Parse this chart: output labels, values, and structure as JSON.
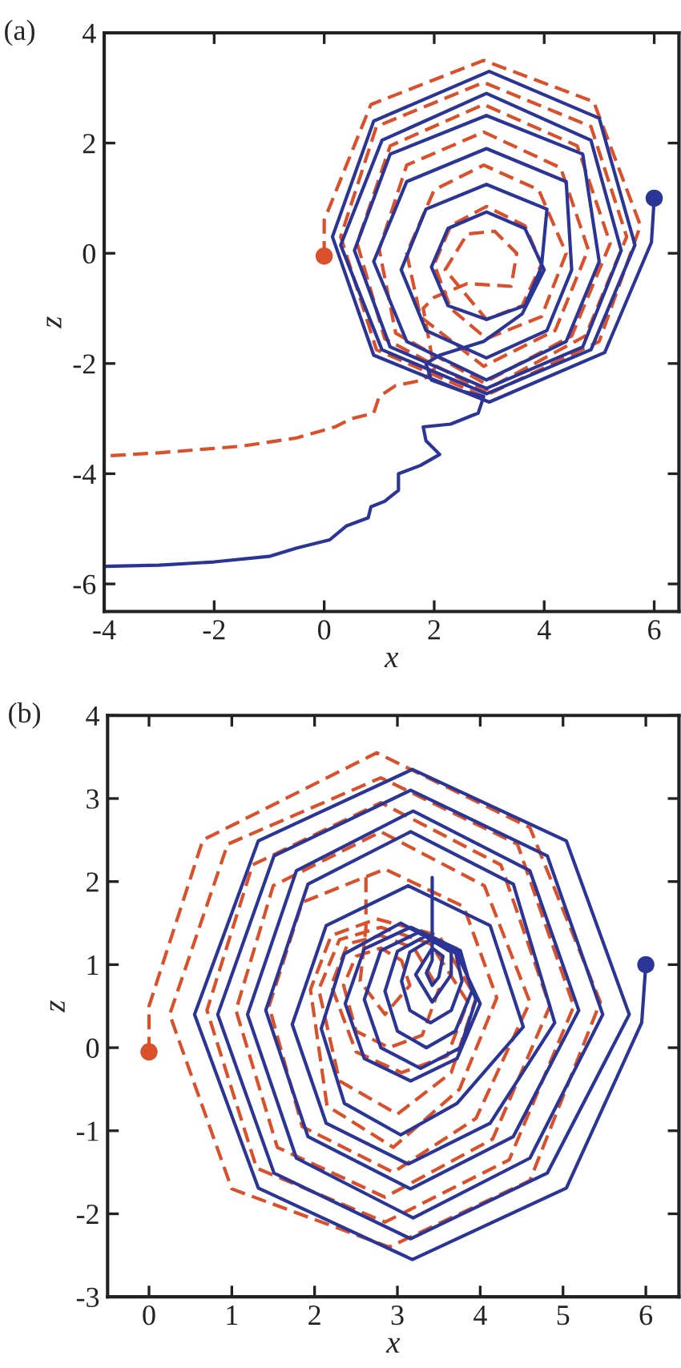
{
  "chart_data": [
    {
      "type": "line",
      "title": "(a)",
      "xlabel": "x",
      "ylabel": "z",
      "xlim": [
        -4,
        6.45
      ],
      "ylim": [
        -6.5,
        4
      ],
      "xticks": [
        -4,
        -2,
        0,
        2,
        4,
        6
      ],
      "yticks": [
        -6,
        -4,
        -2,
        0,
        2,
        4
      ],
      "grid": false,
      "series": [
        {
          "color": "#d9502b",
          "line_style": "dashed",
          "marker": "none",
          "x": [
            0.0,
            0.0,
            0.85,
            2.9,
            4.9,
            5.75,
            5.0,
            2.9,
            0.95,
            0.3,
            0.95,
            2.9,
            4.85,
            5.5,
            4.75,
            2.9,
            1.1,
            0.6,
            1.2,
            2.9,
            4.6,
            5.2,
            4.5,
            2.9,
            1.3,
            1.0,
            1.5,
            2.9,
            4.3,
            4.8,
            4.2,
            2.9,
            1.75,
            1.5,
            2.0,
            2.9,
            3.9,
            4.4,
            3.95,
            2.95,
            2.3,
            2.0,
            2.3,
            2.95,
            3.65,
            3.95,
            3.6,
            2.95,
            2.2,
            2.6,
            3.1,
            3.5,
            3.4,
            2.6,
            2.0,
            1.8,
            2.0,
            1.8,
            1.3,
            1.0,
            0.9,
            0.5,
            0.2,
            -0.5,
            -1.5,
            -3.0,
            -4.0
          ],
          "values": [
            -0.05,
            0.6,
            2.7,
            3.5,
            2.75,
            0.5,
            -1.6,
            -2.6,
            -1.75,
            0.3,
            2.3,
            3.1,
            2.3,
            0.3,
            -1.5,
            -2.5,
            -1.55,
            0.18,
            1.95,
            2.7,
            1.95,
            0.18,
            -1.5,
            -2.35,
            -1.45,
            0.07,
            1.6,
            2.2,
            1.55,
            0.07,
            -1.4,
            -2.05,
            -1.15,
            0.0,
            1.15,
            1.6,
            1.15,
            0.0,
            -1.15,
            -1.55,
            -1.0,
            -0.2,
            0.5,
            0.85,
            0.5,
            -0.2,
            -0.95,
            -1.2,
            -0.3,
            0.35,
            0.4,
            0.0,
            -0.6,
            -0.55,
            -0.8,
            -1.0,
            -2.1,
            -2.3,
            -2.4,
            -2.6,
            -2.9,
            -3.0,
            -3.15,
            -3.35,
            -3.5,
            -3.62,
            -3.68
          ]
        },
        {
          "color": "#2a3596",
          "line_style": "solid",
          "marker": "none",
          "x": [
            6.0,
            5.95,
            5.1,
            3.0,
            0.9,
            0.15,
            0.9,
            3.0,
            5.0,
            5.65,
            4.85,
            2.95,
            1.05,
            0.3,
            1.05,
            2.95,
            4.85,
            5.4,
            4.7,
            2.95,
            1.2,
            0.55,
            1.2,
            2.95,
            4.7,
            5.0,
            4.4,
            2.95,
            1.5,
            0.9,
            1.5,
            2.95,
            4.4,
            4.5,
            4.05,
            2.95,
            1.85,
            1.4,
            1.85,
            2.95,
            4.05,
            3.95,
            3.65,
            2.95,
            2.25,
            1.95,
            2.25,
            2.95,
            3.65,
            4.0,
            3.6,
            2.9,
            2.1,
            1.85,
            1.95,
            2.5,
            2.9,
            2.8,
            2.3,
            1.8,
            1.85,
            2.1,
            1.75,
            1.35,
            1.35,
            1.1,
            0.85,
            0.8,
            0.4,
            0.1,
            -0.5,
            -1.0,
            -2.0,
            -3.0,
            -4.0
          ],
          "values": [
            1.0,
            0.2,
            -1.8,
            -2.7,
            -1.85,
            0.3,
            2.4,
            3.3,
            2.45,
            0.15,
            -1.75,
            -2.55,
            -1.75,
            0.15,
            2.05,
            2.9,
            2.05,
            0.05,
            -1.7,
            -2.45,
            -1.7,
            0.05,
            1.8,
            2.5,
            1.8,
            -0.15,
            -1.6,
            -2.3,
            -1.6,
            -0.15,
            1.3,
            1.9,
            1.3,
            -0.3,
            -1.4,
            -1.9,
            -1.4,
            -0.3,
            0.8,
            1.25,
            0.8,
            -0.25,
            -0.95,
            -1.2,
            -0.95,
            -0.25,
            0.45,
            0.75,
            0.45,
            -0.3,
            -1.1,
            -1.6,
            -1.85,
            -2.0,
            -2.3,
            -2.5,
            -2.6,
            -2.9,
            -3.1,
            -3.15,
            -3.4,
            -3.65,
            -3.85,
            -4.0,
            -4.3,
            -4.5,
            -4.6,
            -4.8,
            -4.95,
            -5.2,
            -5.35,
            -5.5,
            -5.6,
            -5.66,
            -5.68
          ]
        },
        {
          "type": "scatter",
          "color": "#d9502b",
          "marker": "circle",
          "x": [
            0.0
          ],
          "values": [
            -0.05
          ]
        },
        {
          "type": "scatter",
          "color": "#2a3596",
          "marker": "circle",
          "x": [
            6.0
          ],
          "values": [
            1.0
          ]
        }
      ]
    },
    {
      "type": "line",
      "title": "(b)",
      "xlabel": "x",
      "ylabel": "z",
      "xlim": [
        -0.5,
        6.4
      ],
      "ylim": [
        -3,
        4
      ],
      "xticks": [
        0,
        1,
        2,
        3,
        4,
        5,
        6
      ],
      "yticks": [
        -3,
        -2,
        -1,
        0,
        1,
        2,
        3,
        4
      ],
      "grid": false,
      "series": [
        {
          "color": "#d9502b",
          "line_style": "dashed",
          "marker": "none",
          "x": [
            0.0,
            0.0,
            0.65,
            2.75,
            4.6,
            5.45,
            4.6,
            2.9,
            1.0,
            0.25,
            0.95,
            2.8,
            4.45,
            5.13,
            4.35,
            2.85,
            1.3,
            0.7,
            1.25,
            2.8,
            4.25,
            4.84,
            4.15,
            2.85,
            1.55,
            1.05,
            1.5,
            2.8,
            4.05,
            4.6,
            3.95,
            2.95,
            1.85,
            1.45,
            1.85,
            2.85,
            3.8,
            4.2,
            3.75,
            2.95,
            2.15,
            1.95,
            2.2,
            2.75,
            3.5,
            3.95,
            3.65,
            3.0,
            2.3,
            2.05,
            2.3,
            2.8,
            3.4,
            3.85,
            3.6,
            3.05,
            2.5,
            2.2,
            2.4,
            2.8,
            3.2,
            3.5,
            3.3,
            2.9,
            2.5,
            2.35,
            2.5,
            2.8,
            3.05,
            3.15,
            2.85,
            2.55,
            2.62,
            2.62
          ],
          "values": [
            -0.05,
            0.5,
            2.5,
            3.55,
            2.65,
            0.55,
            -1.6,
            -2.4,
            -1.7,
            0.4,
            2.45,
            3.25,
            2.45,
            0.5,
            -1.35,
            -2.1,
            -1.45,
            0.45,
            2.2,
            2.95,
            2.2,
            0.5,
            -1.1,
            -1.8,
            -1.2,
            0.45,
            1.95,
            2.6,
            1.95,
            0.55,
            -0.85,
            -1.5,
            -0.95,
            0.5,
            1.75,
            2.15,
            1.7,
            0.6,
            -0.5,
            -1.2,
            -0.7,
            0.7,
            1.35,
            1.55,
            1.35,
            0.6,
            -0.3,
            -0.8,
            -0.4,
            0.7,
            1.3,
            1.45,
            1.25,
            0.55,
            -0.1,
            -0.3,
            -0.05,
            0.75,
            1.25,
            1.35,
            1.2,
            0.7,
            0.15,
            0.0,
            0.2,
            0.75,
            1.1,
            1.2,
            1.05,
            0.75,
            0.4,
            0.8,
            1.45,
            2.1
          ]
        },
        {
          "color": "#2a3596",
          "line_style": "solid",
          "marker": "none",
          "x": [
            6.0,
            5.95,
            5.04,
            3.18,
            1.32,
            0.55,
            1.32,
            3.18,
            5.04,
            5.8,
            4.81,
            3.16,
            1.51,
            0.83,
            1.51,
            3.16,
            4.81,
            5.48,
            4.6,
            3.19,
            1.78,
            1.19,
            1.78,
            3.19,
            4.6,
            5.19,
            4.4,
            3.16,
            1.92,
            1.41,
            1.92,
            3.16,
            4.4,
            4.9,
            4.12,
            3.13,
            2.14,
            1.73,
            2.14,
            3.13,
            4.12,
            4.52,
            3.72,
            3.04,
            2.36,
            2.08,
            2.36,
            3.04,
            3.72,
            4.0,
            3.72,
            3.16,
            2.6,
            2.37,
            2.6,
            3.16,
            3.72,
            3.95,
            3.76,
            3.28,
            2.8,
            2.6,
            2.8,
            3.28,
            3.76,
            3.9,
            3.7,
            3.35,
            3.0,
            2.85,
            3.0,
            3.35,
            3.7,
            3.78,
            3.65,
            3.4,
            3.15,
            3.05,
            3.15,
            3.4,
            3.65,
            3.65,
            3.42,
            3.22,
            3.42,
            3.55,
            3.5,
            3.42,
            3.35,
            3.42,
            3.42
          ],
          "values": [
            1.0,
            0.3,
            -1.69,
            -2.55,
            -1.69,
            0.4,
            2.49,
            3.35,
            2.49,
            0.4,
            -1.51,
            -2.3,
            -1.51,
            0.4,
            2.31,
            3.1,
            2.31,
            0.4,
            -1.33,
            -2.05,
            -1.33,
            0.4,
            2.13,
            2.85,
            2.13,
            0.45,
            -1.07,
            -1.7,
            -1.07,
            0.45,
            1.97,
            2.6,
            1.97,
            0.3,
            -0.91,
            -1.4,
            -0.91,
            0.28,
            1.47,
            1.95,
            1.47,
            0.25,
            -0.67,
            -1.05,
            -0.67,
            0.23,
            1.13,
            1.5,
            1.13,
            0.53,
            -0.13,
            -0.4,
            -0.13,
            0.53,
            1.19,
            1.45,
            1.19,
            0.58,
            0.0,
            -0.25,
            0.0,
            0.58,
            1.17,
            1.4,
            1.17,
            0.68,
            0.2,
            0.0,
            0.2,
            0.68,
            1.16,
            1.35,
            1.16,
            0.8,
            0.45,
            0.3,
            0.45,
            0.8,
            1.15,
            1.3,
            1.15,
            0.88,
            0.55,
            0.88,
            1.2,
            1.1,
            0.85,
            0.75,
            0.9,
            1.05,
            2.05
          ]
        },
        {
          "type": "scatter",
          "color": "#d9502b",
          "marker": "circle",
          "x": [
            0.0
          ],
          "values": [
            -0.05
          ]
        },
        {
          "type": "scatter",
          "color": "#2a3596",
          "marker": "circle",
          "x": [
            6.0
          ],
          "values": [
            1.0
          ]
        }
      ]
    }
  ]
}
